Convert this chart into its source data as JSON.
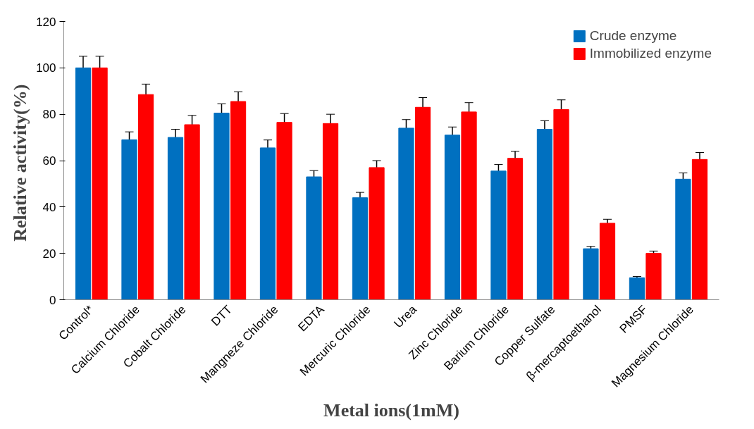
{
  "chart_data": {
    "type": "bar",
    "xlabel": "Metal ions(1mM)",
    "ylabel": "Relative  activity(%)",
    "categories": [
      "Control*",
      "Calcium Chloride",
      "Cobalt Chloride",
      "DTT",
      "Mangneze Chloride",
      "EDTA",
      "Mercuric Chloride",
      "Urea",
      "Zinc Chloride",
      "Barium Chloride",
      "Copper Sulfate",
      "β-mercaptoethanol",
      "PMSF",
      "Magnesium Chloride"
    ],
    "series": [
      {
        "name": "Crude enzyme",
        "color": "#0070c0",
        "values": [
          100,
          69,
          70,
          80.5,
          65.5,
          53,
          44,
          74,
          71,
          55.5,
          73.5,
          22,
          9.5,
          52
        ],
        "errors": [
          5,
          3.4,
          3.5,
          4,
          3.4,
          2.7,
          2.3,
          3.7,
          3.5,
          2.8,
          3.7,
          1,
          0.5,
          2.7
        ]
      },
      {
        "name": "Immobilized enzyme",
        "color": "#ff0000",
        "values": [
          100,
          88.5,
          75.5,
          85.5,
          76.5,
          76,
          57,
          83,
          81,
          61,
          82,
          33,
          20,
          60.5
        ],
        "errors": [
          5,
          4.5,
          4,
          4.2,
          3.8,
          4,
          3,
          4.2,
          4,
          3,
          4.2,
          1.7,
          1,
          3
        ]
      }
    ],
    "ylim": [
      0,
      120
    ],
    "yticks": [
      0,
      20,
      40,
      60,
      80,
      100,
      120
    ],
    "grid": false,
    "legend": "top right"
  }
}
